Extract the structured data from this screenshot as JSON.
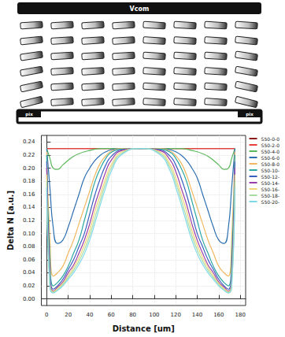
{
  "diagram": {
    "top_electrode": "Vcom",
    "pixel_electrodes": [
      "pix",
      "pix"
    ]
  },
  "chart_data": {
    "type": "line",
    "x_label": "Distance [um]",
    "y_label": "Delta N [a.u.]",
    "xlim": [
      -5,
      185
    ],
    "xticks": [
      0,
      20,
      40,
      60,
      80,
      100,
      120,
      140,
      160,
      180
    ],
    "ylim": [
      -0.01,
      0.25
    ],
    "yticks": [
      {
        "value": 0,
        "label": "0.00"
      },
      0.02,
      0.04,
      0.06,
      0.08,
      {
        "value": 0.1,
        "label": "0.10"
      },
      0.12,
      0.14,
      0.16,
      0.18,
      {
        "value": 0.2,
        "label": "0.20"
      },
      0.22,
      0.24
    ],
    "grid": true,
    "legend": "right",
    "x": [
      0,
      3,
      6,
      10,
      15,
      20,
      25,
      30,
      35,
      40,
      45,
      50,
      55,
      60,
      70,
      87.5,
      105,
      115,
      120,
      125,
      130,
      135,
      140,
      145,
      150,
      155,
      160,
      165,
      169,
      172,
      175
    ],
    "series": [
      {
        "name": "S50-0-0",
        "color": "#8b1a1a",
        "values": [
          0.23,
          0.23,
          0.23,
          0.23,
          0.23,
          0.23,
          0.23,
          0.23,
          0.23,
          0.23,
          0.23,
          0.23,
          0.23,
          0.23,
          0.23,
          0.23,
          0.23,
          0.23,
          0.23,
          0.23,
          0.23,
          0.23,
          0.23,
          0.23,
          0.23,
          0.23,
          0.23,
          0.23,
          0.23,
          0.23,
          0.23
        ]
      },
      {
        "name": "S50-2-0",
        "color": "#e8413c",
        "values": [
          0.23,
          0.23,
          0.23,
          0.23,
          0.23,
          0.23,
          0.23,
          0.23,
          0.23,
          0.23,
          0.23,
          0.23,
          0.23,
          0.23,
          0.23,
          0.23,
          0.23,
          0.23,
          0.23,
          0.23,
          0.23,
          0.23,
          0.23,
          0.23,
          0.23,
          0.23,
          0.23,
          0.23,
          0.23,
          0.23,
          0.23
        ]
      },
      {
        "name": "S50-4-0",
        "color": "#5cb85c",
        "values": [
          0.23,
          0.215,
          0.2,
          0.198,
          0.205,
          0.212,
          0.218,
          0.222,
          0.225,
          0.227,
          0.229,
          0.23,
          0.23,
          0.23,
          0.23,
          0.23,
          0.23,
          0.23,
          0.23,
          0.23,
          0.229,
          0.227,
          0.225,
          0.222,
          0.218,
          0.212,
          0.205,
          0.198,
          0.2,
          0.215,
          0.23
        ]
      },
      {
        "name": "S50-6-0",
        "color": "#2c6fb0",
        "values": [
          0.23,
          0.17,
          0.11,
          0.085,
          0.09,
          0.11,
          0.135,
          0.16,
          0.185,
          0.2,
          0.212,
          0.22,
          0.225,
          0.228,
          0.23,
          0.23,
          0.23,
          0.228,
          0.225,
          0.22,
          0.212,
          0.2,
          0.185,
          0.16,
          0.135,
          0.11,
          0.09,
          0.085,
          0.11,
          0.17,
          0.23
        ]
      },
      {
        "name": "S50-8-0",
        "color": "#f0b860",
        "values": [
          0.225,
          0.09,
          0.035,
          0.04,
          0.05,
          0.07,
          0.09,
          0.115,
          0.14,
          0.165,
          0.19,
          0.208,
          0.219,
          0.226,
          0.23,
          0.23,
          0.23,
          0.226,
          0.219,
          0.208,
          0.19,
          0.165,
          0.14,
          0.115,
          0.09,
          0.07,
          0.05,
          0.04,
          0.035,
          0.09,
          0.225
        ]
      },
      {
        "name": "S50-10-",
        "color": "#2ba8a0",
        "values": [
          0.22,
          0.06,
          0.02,
          0.025,
          0.035,
          0.05,
          0.07,
          0.09,
          0.12,
          0.15,
          0.18,
          0.2,
          0.215,
          0.224,
          0.229,
          0.23,
          0.229,
          0.224,
          0.215,
          0.2,
          0.18,
          0.15,
          0.12,
          0.09,
          0.07,
          0.05,
          0.035,
          0.025,
          0.02,
          0.06,
          0.22
        ]
      },
      {
        "name": "S50-12-",
        "color": "#3b5fc0",
        "values": [
          0.21,
          0.04,
          0.015,
          0.02,
          0.03,
          0.045,
          0.06,
          0.08,
          0.1,
          0.13,
          0.16,
          0.185,
          0.205,
          0.218,
          0.228,
          0.23,
          0.228,
          0.218,
          0.205,
          0.185,
          0.16,
          0.13,
          0.1,
          0.08,
          0.06,
          0.045,
          0.03,
          0.02,
          0.015,
          0.04,
          0.21
        ]
      },
      {
        "name": "S50-14-",
        "color": "#9b3fa8",
        "values": [
          0.2,
          0.03,
          0.012,
          0.018,
          0.026,
          0.04,
          0.052,
          0.07,
          0.09,
          0.115,
          0.145,
          0.17,
          0.195,
          0.212,
          0.227,
          0.23,
          0.227,
          0.212,
          0.195,
          0.17,
          0.145,
          0.115,
          0.09,
          0.07,
          0.052,
          0.04,
          0.026,
          0.018,
          0.012,
          0.03,
          0.2
        ]
      },
      {
        "name": "S50-16-",
        "color": "#f2d47a",
        "values": [
          0.19,
          0.025,
          0.011,
          0.016,
          0.024,
          0.036,
          0.048,
          0.063,
          0.082,
          0.105,
          0.135,
          0.16,
          0.185,
          0.205,
          0.225,
          0.23,
          0.225,
          0.205,
          0.185,
          0.16,
          0.135,
          0.105,
          0.082,
          0.063,
          0.048,
          0.036,
          0.024,
          0.016,
          0.011,
          0.025,
          0.19
        ]
      },
      {
        "name": "S50-18-",
        "color": "#a8dca0",
        "values": [
          0.18,
          0.02,
          0.01,
          0.014,
          0.022,
          0.033,
          0.044,
          0.058,
          0.075,
          0.097,
          0.125,
          0.152,
          0.178,
          0.2,
          0.223,
          0.23,
          0.223,
          0.2,
          0.178,
          0.152,
          0.125,
          0.097,
          0.075,
          0.058,
          0.044,
          0.033,
          0.022,
          0.014,
          0.01,
          0.02,
          0.18
        ]
      },
      {
        "name": "S50-20-",
        "color": "#7fd8e8",
        "values": [
          0.17,
          0.018,
          0.009,
          0.013,
          0.02,
          0.03,
          0.04,
          0.053,
          0.069,
          0.09,
          0.117,
          0.145,
          0.171,
          0.195,
          0.221,
          0.23,
          0.221,
          0.195,
          0.171,
          0.145,
          0.117,
          0.09,
          0.069,
          0.053,
          0.04,
          0.03,
          0.02,
          0.013,
          0.009,
          0.018,
          0.17
        ]
      }
    ]
  }
}
